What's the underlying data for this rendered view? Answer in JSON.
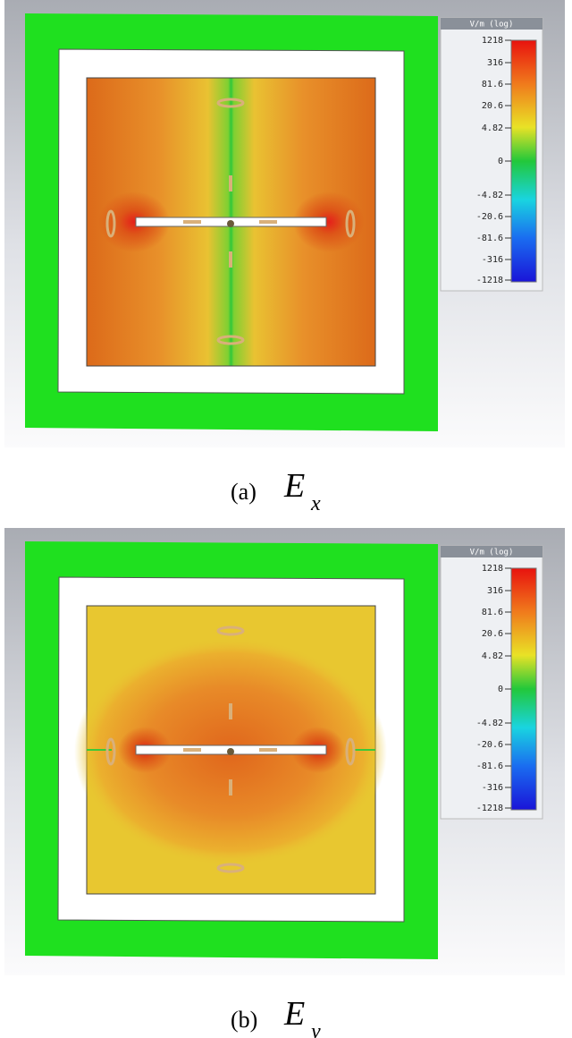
{
  "panels": [
    {
      "legend": {
        "title": "V/m (log)",
        "ticks": [
          "1218",
          "316",
          "81.6",
          "20.6",
          "4.82",
          "0",
          "-4.82",
          "-20.6",
          "-81.6",
          "-316",
          "-1218"
        ]
      },
      "caption": {
        "label": "(a)",
        "symbol": "E",
        "subscript": "x"
      }
    },
    {
      "legend": {
        "title": "V/m (log)",
        "ticks": [
          "1218",
          "316",
          "81.6",
          "20.6",
          "4.82",
          "0",
          "-4.82",
          "-20.6",
          "-81.6",
          "-316",
          "-1218"
        ]
      },
      "caption": {
        "label": "(b)",
        "symbol": "E",
        "subscript": "y"
      }
    }
  ]
}
